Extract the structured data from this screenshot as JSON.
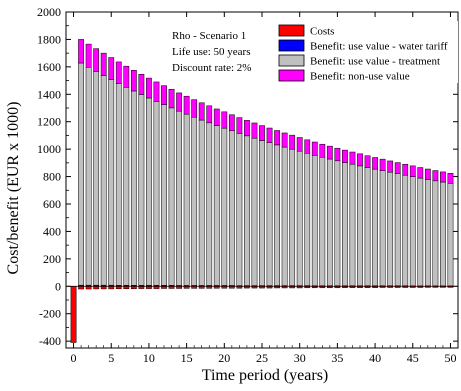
{
  "chart_data": {
    "type": "bar",
    "stacked": true,
    "xlabel": "Time period (years)",
    "ylabel": "Cost/benefit (EUR x 1000)",
    "xlim": [
      -1,
      51
    ],
    "ylim": [
      -450,
      2000
    ],
    "x_ticks": [
      0,
      5,
      10,
      15,
      20,
      25,
      30,
      35,
      40,
      45,
      50
    ],
    "y_ticks": [
      -400,
      -200,
      0,
      200,
      400,
      600,
      800,
      1000,
      1200,
      1400,
      1600,
      1800,
      2000
    ],
    "grid": false,
    "legend_position": "top-right",
    "annotations": [
      "Rho - Scenario 1",
      "Life use: 50 years",
      "Discount rate: 2%"
    ],
    "x": [
      0,
      1,
      2,
      3,
      4,
      5,
      6,
      7,
      8,
      9,
      10,
      11,
      12,
      13,
      14,
      15,
      16,
      17,
      18,
      19,
      20,
      21,
      22,
      23,
      24,
      25,
      26,
      27,
      28,
      29,
      30,
      31,
      32,
      33,
      34,
      35,
      36,
      37,
      38,
      39,
      40,
      41,
      42,
      43,
      44,
      45,
      46,
      47,
      48,
      49,
      50
    ],
    "series": [
      {
        "name": "Costs",
        "color": "#ff0000",
        "values": [
          -410,
          -20,
          -20,
          -19,
          -19,
          -19,
          -18,
          -18,
          -18,
          -17,
          -17,
          -17,
          -16,
          -16,
          -16,
          -15,
          -15,
          -15,
          -15,
          -14,
          -14,
          -14,
          -14,
          -13,
          -13,
          -13,
          -13,
          -12,
          -12,
          -12,
          -12,
          -11,
          -11,
          -11,
          -11,
          -11,
          -10,
          -10,
          -10,
          -10,
          -10,
          -9,
          -9,
          -9,
          -9,
          -9,
          -9,
          -8,
          -8,
          -8,
          -8
        ]
      },
      {
        "name": "Benefit: use value - water tariff",
        "color": "#0000ff",
        "values": [
          0,
          8,
          8,
          8,
          8,
          8,
          7,
          7,
          7,
          7,
          7,
          7,
          7,
          7,
          6,
          6,
          6,
          6,
          6,
          6,
          6,
          6,
          5,
          5,
          5,
          5,
          5,
          5,
          5,
          5,
          5,
          5,
          4,
          4,
          4,
          4,
          4,
          4,
          4,
          4,
          4,
          4,
          4,
          4,
          4,
          3,
          3,
          3,
          3,
          3,
          3
        ]
      },
      {
        "name": "Benefit: use value - treatment",
        "color": "#c0c0c0",
        "values": [
          0,
          1620,
          1589,
          1559,
          1529,
          1500,
          1472,
          1444,
          1417,
          1391,
          1366,
          1341,
          1317,
          1294,
          1271,
          1249,
          1227,
          1206,
          1186,
          1166,
          1147,
          1128,
          1110,
          1092,
          1075,
          1058,
          1042,
          1026,
          1010,
          995,
          980,
          965,
          951,
          937,
          924,
          911,
          898,
          886,
          874,
          862,
          850,
          839,
          828,
          817,
          806,
          796,
          786,
          776,
          766,
          757,
          748
        ]
      },
      {
        "name": "Benefit: non-use value",
        "color": "#ff00ff",
        "values": [
          0,
          172,
          169,
          166,
          163,
          160,
          157,
          154,
          151,
          148,
          145,
          142,
          139,
          136,
          133,
          131,
          128,
          126,
          124,
          121,
          119,
          117,
          115,
          113,
          111,
          109,
          107,
          105,
          103,
          102,
          100,
          98,
          97,
          95,
          94,
          92,
          91,
          89,
          88,
          86,
          85,
          84,
          82,
          81,
          80,
          79,
          77,
          76,
          75,
          74,
          73
        ]
      }
    ]
  }
}
